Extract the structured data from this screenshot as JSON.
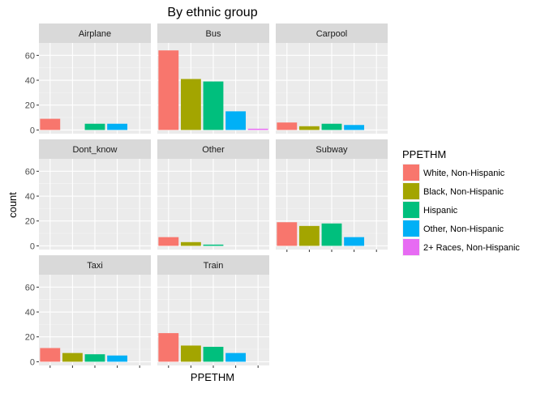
{
  "chart_data": {
    "type": "bar",
    "title": "By ethnic group",
    "xlabel": "PPETHM",
    "ylabel": "count",
    "ylim": [
      -3,
      70
    ],
    "yticks": [
      0,
      20,
      40,
      60
    ],
    "grid": true,
    "legend": {
      "title": "PPETHM",
      "placement": "right",
      "entries": [
        {
          "name": "White, Non-Hispanic",
          "color": "#F8766D"
        },
        {
          "name": "Black, Non-Hispanic",
          "color": "#A3A500"
        },
        {
          "name": "Hispanic",
          "color": "#00BF7D"
        },
        {
          "name": "Other, Non-Hispanic",
          "color": "#00B0F6"
        },
        {
          "name": "2+ Races, Non-Hispanic",
          "color": "#E76BF3"
        }
      ]
    },
    "categories": [
      "White, Non-Hispanic",
      "Black, Non-Hispanic",
      "Hispanic",
      "Other, Non-Hispanic",
      "2+ Races, Non-Hispanic"
    ],
    "facets": [
      {
        "label": "Airplane",
        "values": [
          9,
          0,
          5,
          5,
          0
        ]
      },
      {
        "label": "Bus",
        "values": [
          64,
          41,
          39,
          15,
          1
        ]
      },
      {
        "label": "Carpool",
        "values": [
          6,
          3,
          5,
          4,
          0
        ]
      },
      {
        "label": "Dont_know",
        "values": [
          0,
          0,
          0,
          0,
          0
        ]
      },
      {
        "label": "Other",
        "values": [
          7,
          3,
          1,
          0,
          0
        ]
      },
      {
        "label": "Subway",
        "values": [
          19,
          16,
          18,
          7,
          0
        ]
      },
      {
        "label": "Taxi",
        "values": [
          11,
          7,
          6,
          5,
          0
        ]
      },
      {
        "label": "Train",
        "values": [
          23,
          13,
          12,
          7,
          0
        ]
      }
    ]
  }
}
